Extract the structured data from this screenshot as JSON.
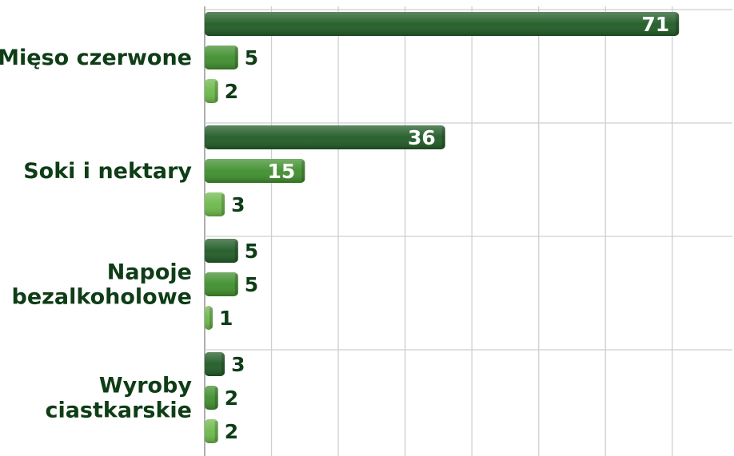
{
  "chart_data": {
    "type": "bar",
    "orientation": "horizontal",
    "categories": [
      "Mięso czerwone",
      "Soki i nektary",
      "Napoje bezalkoholowe",
      "Wyroby ciastkarskie"
    ],
    "category_lines": [
      [
        "Mięso czerwone"
      ],
      [
        "Soki i nektary"
      ],
      [
        "Napoje",
        "bezalkoholowe"
      ],
      [
        "Wyroby",
        "ciastkarskie"
      ]
    ],
    "series": [
      {
        "values": [
          71,
          36,
          5,
          3
        ],
        "color": "#1f5a24"
      },
      {
        "values": [
          5,
          15,
          5,
          2
        ],
        "color": "#3e8e2c"
      },
      {
        "values": [
          2,
          3,
          1,
          2
        ],
        "color": "#6cb84a"
      }
    ],
    "xlim": [
      0,
      79
    ],
    "grid": true,
    "legend": "none",
    "title": "",
    "xlabel": "",
    "ylabel": ""
  }
}
